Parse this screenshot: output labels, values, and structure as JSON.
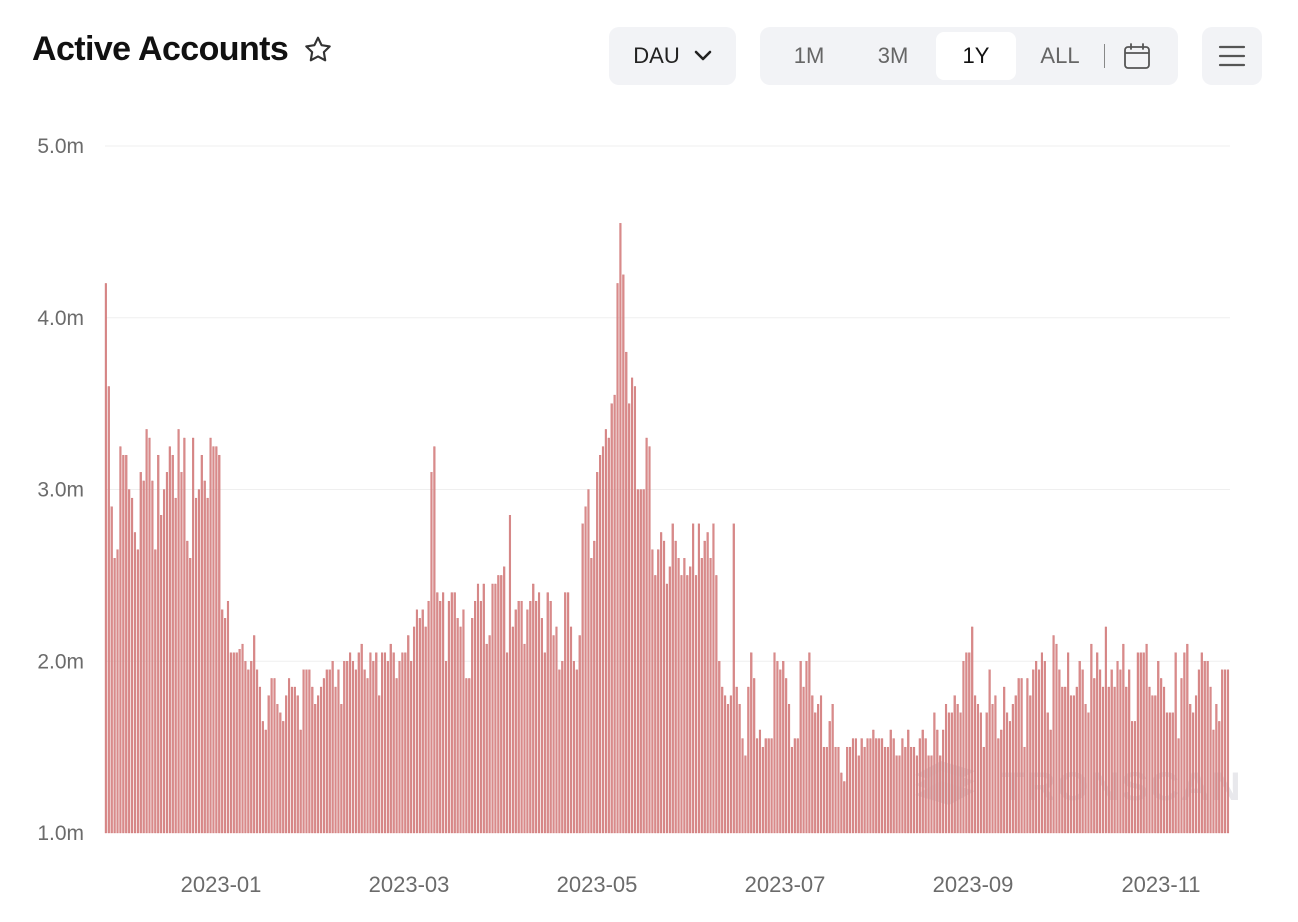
{
  "header": {
    "title": "Active Accounts",
    "metric_selector": "DAU",
    "range_options": [
      "1M",
      "3M",
      "1Y",
      "ALL"
    ],
    "active_range": "1Y"
  },
  "watermark": "TRONSCAN",
  "colors": {
    "bar": "#d98a8a",
    "bar_edge": "#c86a6a",
    "grid": "#efefef",
    "control_bg": "#f2f3f6"
  },
  "chart_data": {
    "type": "bar",
    "title": "Active Accounts",
    "ylim": [
      1.0,
      5.0
    ],
    "y_ticks": [
      "1.0m",
      "2.0m",
      "3.0m",
      "4.0m",
      "5.0m"
    ],
    "x_ticks": [
      "2023-01",
      "2023-03",
      "2023-05",
      "2023-07",
      "2023-09",
      "2023-11"
    ],
    "grid": "horizontal",
    "series": [
      {
        "values": [
          4.2,
          3.6,
          2.9,
          2.6,
          2.65,
          3.25,
          3.2,
          3.2,
          3.0,
          2.95,
          2.75,
          2.65,
          3.1,
          3.05,
          3.35,
          3.3,
          3.05,
          2.65,
          3.2,
          2.85,
          3.0,
          3.1,
          3.25,
          3.2,
          2.95,
          3.35,
          3.1,
          3.3,
          2.7,
          2.6,
          3.3,
          2.95,
          3.0,
          3.2,
          3.05,
          2.95,
          3.3,
          3.25,
          3.25,
          3.2,
          2.3,
          2.25,
          2.35,
          2.05,
          2.05,
          2.05,
          2.07,
          2.1,
          2.0,
          1.95,
          2.0,
          2.15,
          1.95,
          1.85,
          1.65,
          1.6,
          1.8,
          1.9,
          1.9,
          1.75,
          1.7,
          1.65,
          1.8,
          1.9,
          1.85,
          1.85,
          1.8,
          1.6,
          1.95,
          1.95,
          1.95,
          1.85,
          1.75,
          1.8,
          1.85,
          1.9,
          1.95,
          1.95,
          2.0,
          1.85,
          1.95,
          1.75,
          2.0,
          2.0,
          2.05,
          2.0,
          1.95,
          2.05,
          2.1,
          1.95,
          1.9,
          2.05,
          2.0,
          2.05,
          1.8,
          2.05,
          2.05,
          2.0,
          2.1,
          2.05,
          1.9,
          2.0,
          2.05,
          2.05,
          2.15,
          2.0,
          2.2,
          2.3,
          2.25,
          2.3,
          2.2,
          2.35,
          3.1,
          3.25,
          2.4,
          2.35,
          2.4,
          2.0,
          2.35,
          2.4,
          2.4,
          2.25,
          2.2,
          2.3,
          1.9,
          1.9,
          2.25,
          2.35,
          2.45,
          2.35,
          2.45,
          2.1,
          2.15,
          2.45,
          2.45,
          2.5,
          2.5,
          2.55,
          2.05,
          2.85,
          2.2,
          2.3,
          2.35,
          2.35,
          2.1,
          2.3,
          2.35,
          2.45,
          2.35,
          2.4,
          2.25,
          2.05,
          2.4,
          2.35,
          2.15,
          2.2,
          1.95,
          2.0,
          2.4,
          2.4,
          2.2,
          2.0,
          1.95,
          2.15,
          2.8,
          2.9,
          3.0,
          2.6,
          2.7,
          3.1,
          3.2,
          3.25,
          3.35,
          3.3,
          3.5,
          3.55,
          4.2,
          4.55,
          4.25,
          3.8,
          3.5,
          3.65,
          3.6,
          3.0,
          3.0,
          3.0,
          3.3,
          3.25,
          2.65,
          2.5,
          2.65,
          2.75,
          2.7,
          2.45,
          2.55,
          2.8,
          2.7,
          2.6,
          2.5,
          2.6,
          2.5,
          2.55,
          2.8,
          2.5,
          2.8,
          2.6,
          2.7,
          2.75,
          2.6,
          2.8,
          2.5,
          2.0,
          1.85,
          1.8,
          1.75,
          1.8,
          2.8,
          1.85,
          1.75,
          1.55,
          1.45,
          1.85,
          2.05,
          1.9,
          1.55,
          1.6,
          1.5,
          1.55,
          1.55,
          1.55,
          2.05,
          2.0,
          1.95,
          2.0,
          1.9,
          1.75,
          1.5,
          1.55,
          1.55,
          2.0,
          1.85,
          2.0,
          2.05,
          1.8,
          1.7,
          1.75,
          1.8,
          1.5,
          1.5,
          1.65,
          1.75,
          1.5,
          1.5,
          1.35,
          1.3,
          1.5,
          1.5,
          1.55,
          1.55,
          1.45,
          1.55,
          1.5,
          1.55,
          1.55,
          1.6,
          1.55,
          1.55,
          1.55,
          1.5,
          1.5,
          1.6,
          1.55,
          1.45,
          1.45,
          1.55,
          1.5,
          1.6,
          1.5,
          1.5,
          1.45,
          1.55,
          1.6,
          1.55,
          1.45,
          1.45,
          1.7,
          1.6,
          1.45,
          1.6,
          1.75,
          1.7,
          1.7,
          1.8,
          1.75,
          1.7,
          2.0,
          2.05,
          2.05,
          2.2,
          1.8,
          1.75,
          1.7,
          1.5,
          1.7,
          1.95,
          1.75,
          1.8,
          1.55,
          1.6,
          1.85,
          1.7,
          1.65,
          1.75,
          1.8,
          1.9,
          1.9,
          1.5,
          1.9,
          1.8,
          1.95,
          2.0,
          1.95,
          2.05,
          2.0,
          1.7,
          1.6,
          2.15,
          2.1,
          1.95,
          1.85,
          1.85,
          2.05,
          1.8,
          1.8,
          1.85,
          2.0,
          1.95,
          1.75,
          1.7,
          2.1,
          1.9,
          2.05,
          1.95,
          1.85,
          2.2,
          1.85,
          1.95,
          1.85,
          2.0,
          1.95,
          2.1,
          1.85,
          1.95,
          1.65,
          1.65,
          2.05,
          2.05,
          2.05,
          2.1,
          1.85,
          1.8,
          1.8,
          2.0,
          1.9,
          1.85,
          1.7,
          1.7,
          1.7,
          2.05,
          1.55,
          1.9,
          2.05,
          2.1,
          1.75,
          1.7,
          1.8,
          1.95,
          2.05,
          2.0,
          2.0,
          1.85,
          1.6,
          1.75,
          1.65,
          1.95,
          1.95,
          1.95
        ]
      }
    ]
  }
}
